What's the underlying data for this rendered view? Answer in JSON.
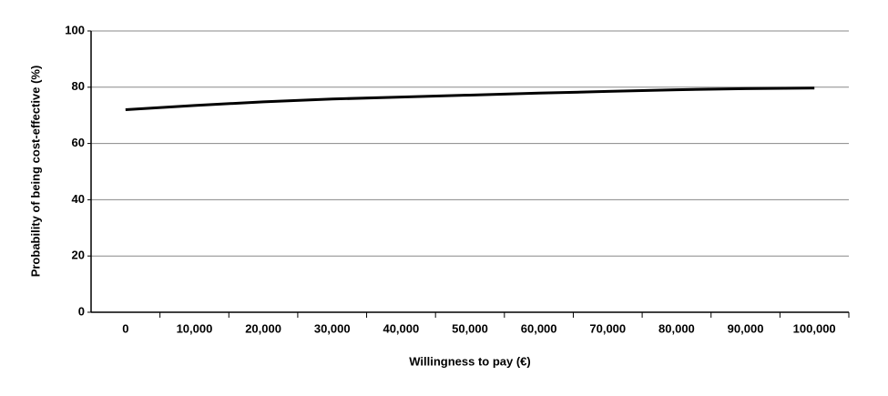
{
  "chart_data": {
    "type": "line",
    "xlabel": "Willingness to pay (€)",
    "ylabel": "Probability of being cost-effective (%)",
    "categories": [
      "0",
      "10,000",
      "20,000",
      "30,000",
      "40,000",
      "50,000",
      "60,000",
      "70,000",
      "80,000",
      "90,000",
      "100,000"
    ],
    "values": [
      72,
      73.5,
      74.8,
      75.8,
      76.5,
      77.2,
      77.9,
      78.5,
      79.1,
      79.5,
      79.7
    ],
    "color": "#000000",
    "ylim": [
      0,
      100
    ],
    "yticks": [
      0,
      20,
      40,
      60,
      80,
      100
    ],
    "grid": true
  }
}
